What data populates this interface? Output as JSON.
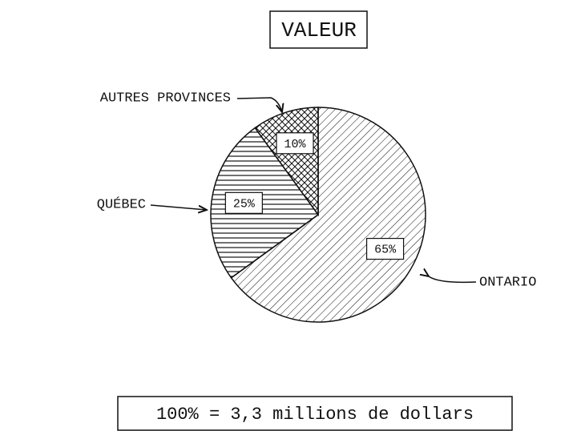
{
  "chart_data": {
    "type": "pie",
    "title": "VALEUR",
    "categories": [
      "ONTARIO",
      "QUÉBEC",
      "AUTRES PROVINCES"
    ],
    "values": [
      65,
      25,
      10
    ],
    "value_labels": [
      "65%",
      "25%",
      "10%"
    ],
    "note": "100% = 3,3 millions de dollars"
  }
}
